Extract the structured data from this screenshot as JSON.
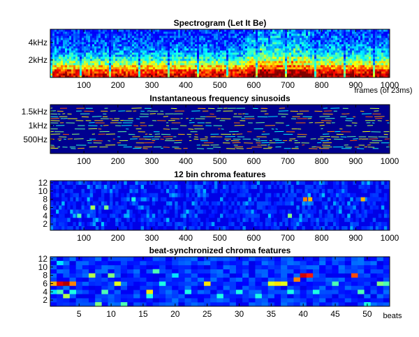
{
  "panels": [
    {
      "id": "spectrogram",
      "title": "Spectrogram (Let It Be)",
      "type": "spectrogram",
      "x_ticks": [
        100,
        200,
        300,
        400,
        500,
        600,
        700,
        800,
        900,
        1000
      ],
      "x_range": [
        1,
        1000
      ],
      "y_ticks": [
        {
          "value": 2000,
          "label": "2kHz"
        },
        {
          "value": 4000,
          "label": "4kHz"
        }
      ],
      "y_range": [
        0,
        5500
      ],
      "xlabel": "frames (of 23ms)"
    },
    {
      "id": "sinusoids",
      "title": "Instantaneous frequency sinusoids",
      "type": "sinusoid-tracks",
      "x_ticks": [
        100,
        200,
        300,
        400,
        500,
        600,
        700,
        800,
        900,
        1000
      ],
      "x_range": [
        1,
        1000
      ],
      "y_ticks": [
        {
          "value": 500,
          "label": "500Hz"
        },
        {
          "value": 1000,
          "label": "1kHz"
        },
        {
          "value": 1500,
          "label": "1.5kHz"
        }
      ],
      "y_range": [
        0,
        1750
      ],
      "xlabel": ""
    },
    {
      "id": "chroma",
      "title": "12 bin chroma features",
      "type": "heatmap",
      "x_ticks": [
        100,
        200,
        300,
        400,
        500,
        600,
        700,
        800,
        900,
        1000
      ],
      "x_range": [
        1,
        1000
      ],
      "y_ticks": [
        {
          "value": 2,
          "label": "2"
        },
        {
          "value": 4,
          "label": "4"
        },
        {
          "value": 6,
          "label": "6"
        },
        {
          "value": 8,
          "label": "8"
        },
        {
          "value": 10,
          "label": "10"
        },
        {
          "value": 12,
          "label": "12"
        }
      ],
      "y_range": [
        0.5,
        12.5
      ],
      "xlabel": ""
    },
    {
      "id": "beat-chroma",
      "title": "beat-synchronized chroma features",
      "type": "heatmap",
      "x_ticks": [
        5,
        10,
        15,
        20,
        25,
        30,
        35,
        40,
        45,
        50
      ],
      "x_range": [
        0.5,
        53.5
      ],
      "y_ticks": [
        {
          "value": 2,
          "label": "2"
        },
        {
          "value": 4,
          "label": "4"
        },
        {
          "value": 6,
          "label": "6"
        },
        {
          "value": 8,
          "label": "8"
        },
        {
          "value": 10,
          "label": "10"
        },
        {
          "value": 12,
          "label": "12"
        }
      ],
      "y_range": [
        0.5,
        12.5
      ],
      "xlabel": "beats"
    }
  ],
  "chart_data": [
    {
      "type": "heatmap",
      "title": "Spectrogram (Let It Be)",
      "xlabel": "frames (of 23ms)",
      "ylabel": "",
      "x_range": [
        1,
        1000
      ],
      "y_range": [
        0,
        5500
      ],
      "colormap": "jet",
      "band_energy": [
        0.95,
        0.88,
        0.72,
        0.55,
        0.42,
        0.34,
        0.28,
        0.24,
        0.21,
        0.19,
        0.17,
        0.16
      ],
      "frame_loudness_segments": [
        {
          "from": 1,
          "to": 580,
          "level": 0.35
        },
        {
          "from": 580,
          "to": 760,
          "level": 0.6
        },
        {
          "from": 760,
          "to": 1000,
          "level": 0.45
        }
      ]
    },
    {
      "type": "heatmap",
      "title": "Instantaneous frequency sinusoids",
      "x_range": [
        1,
        1000
      ],
      "y_range": [
        0,
        1750
      ],
      "colormap": "jet",
      "track_frequencies": [
        180,
        230,
        300,
        380,
        460,
        520,
        600,
        690,
        780,
        880,
        1000,
        1100,
        1180,
        1250,
        1320,
        1420,
        1520,
        1620
      ]
    },
    {
      "type": "heatmap",
      "title": "12 bin chroma features",
      "x_range": [
        1,
        1000
      ],
      "y_range": [
        0.5,
        12.5
      ],
      "rows": 12,
      "colormap": "jet",
      "hot_cells": [
        {
          "x": 120,
          "y": 6,
          "v": 0.55
        },
        {
          "x": 160,
          "y": 6,
          "v": 0.5
        },
        {
          "x": 80,
          "y": 4,
          "v": 0.45
        },
        {
          "x": 240,
          "y": 8,
          "v": 0.4
        },
        {
          "x": 745,
          "y": 8,
          "v": 0.75
        },
        {
          "x": 760,
          "y": 8,
          "v": 0.7
        },
        {
          "x": 915,
          "y": 8,
          "v": 0.7
        },
        {
          "x": 700,
          "y": 4,
          "v": 0.5
        }
      ]
    },
    {
      "type": "heatmap",
      "title": "beat-synchronized chroma features",
      "xlabel": "beats",
      "x_range": [
        0.5,
        53.5
      ],
      "y_range": [
        0.5,
        12.5
      ],
      "rows": 12,
      "colormap": "jet",
      "cells": [
        {
          "x": 1,
          "y": 6,
          "v": 0.7
        },
        {
          "x": 2,
          "y": 6,
          "v": 0.9
        },
        {
          "x": 3,
          "y": 6,
          "v": 0.95
        },
        {
          "x": 4,
          "y": 6,
          "v": 0.75
        },
        {
          "x": 2,
          "y": 4,
          "v": 0.45
        },
        {
          "x": 3,
          "y": 3,
          "v": 0.55
        },
        {
          "x": 4,
          "y": 4,
          "v": 0.4
        },
        {
          "x": 1,
          "y": 4,
          "v": 0.35
        },
        {
          "x": 2,
          "y": 11,
          "v": 0.35
        },
        {
          "x": 7,
          "y": 8,
          "v": 0.55
        },
        {
          "x": 8,
          "y": 1,
          "v": 0.5
        },
        {
          "x": 9,
          "y": 4,
          "v": 0.45
        },
        {
          "x": 10,
          "y": 8,
          "v": 0.5
        },
        {
          "x": 11,
          "y": 6,
          "v": 0.6
        },
        {
          "x": 12,
          "y": 1,
          "v": 0.45
        },
        {
          "x": 16,
          "y": 4,
          "v": 0.65
        },
        {
          "x": 16,
          "y": 3,
          "v": 0.4
        },
        {
          "x": 17,
          "y": 9,
          "v": 0.45
        },
        {
          "x": 18,
          "y": 6,
          "v": 0.4
        },
        {
          "x": 20,
          "y": 8,
          "v": 0.35
        },
        {
          "x": 22,
          "y": 4,
          "v": 0.4
        },
        {
          "x": 25,
          "y": 6,
          "v": 0.65
        },
        {
          "x": 27,
          "y": 3,
          "v": 0.4
        },
        {
          "x": 30,
          "y": 4,
          "v": 0.4
        },
        {
          "x": 33,
          "y": 3,
          "v": 0.4
        },
        {
          "x": 35,
          "y": 6,
          "v": 0.6
        },
        {
          "x": 36,
          "y": 6,
          "v": 0.65
        },
        {
          "x": 37,
          "y": 6,
          "v": 0.6
        },
        {
          "x": 38,
          "y": 4,
          "v": 0.4
        },
        {
          "x": 39,
          "y": 7,
          "v": 0.75
        },
        {
          "x": 40,
          "y": 8,
          "v": 0.92
        },
        {
          "x": 41,
          "y": 8,
          "v": 0.85
        },
        {
          "x": 42,
          "y": 4,
          "v": 0.4
        },
        {
          "x": 45,
          "y": 6,
          "v": 0.45
        },
        {
          "x": 48,
          "y": 8,
          "v": 0.8
        },
        {
          "x": 49,
          "y": 4,
          "v": 0.45
        },
        {
          "x": 50,
          "y": 1,
          "v": 0.4
        },
        {
          "x": 52,
          "y": 6,
          "v": 0.5
        },
        {
          "x": 53,
          "y": 6,
          "v": 0.45
        }
      ]
    }
  ]
}
